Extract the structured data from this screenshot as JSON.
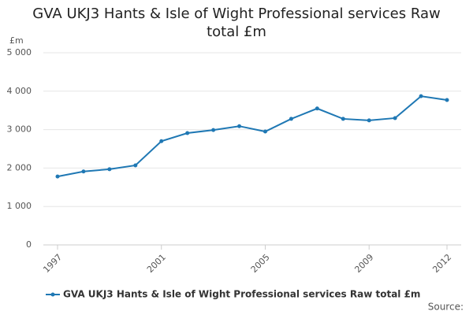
{
  "chart_data": {
    "type": "line",
    "title": "GVA UKJ3 Hants & Isle of Wight Professional services Raw total £m",
    "y_label": "£m",
    "source": "Source:",
    "x": [
      1997,
      1998,
      1999,
      2000,
      2001,
      2002,
      2003,
      2004,
      2005,
      2006,
      2007,
      2008,
      2009,
      2010,
      2011,
      2012
    ],
    "xlim": [
      1997,
      2012
    ],
    "xticks": [
      1997,
      2001,
      2005,
      2009,
      2012
    ],
    "ylim": [
      0,
      5000
    ],
    "yticks": [
      0,
      {
        "value": 1000,
        "label": "1 000"
      },
      {
        "value": 2000,
        "label": "2 000"
      },
      {
        "value": 3000,
        "label": "3 000"
      },
      {
        "value": 4000,
        "label": "4 000"
      },
      {
        "value": 5000,
        "label": "5 000"
      }
    ],
    "grid": true,
    "series": [
      {
        "name": "GVA UKJ3 Hants & Isle of Wight Professional services Raw total £m",
        "color": "#1f78b4",
        "values": [
          1780,
          1910,
          1970,
          2070,
          2700,
          2910,
          2990,
          3090,
          2950,
          3280,
          3550,
          3280,
          3240,
          3300,
          3870,
          3770
        ]
      }
    ]
  }
}
